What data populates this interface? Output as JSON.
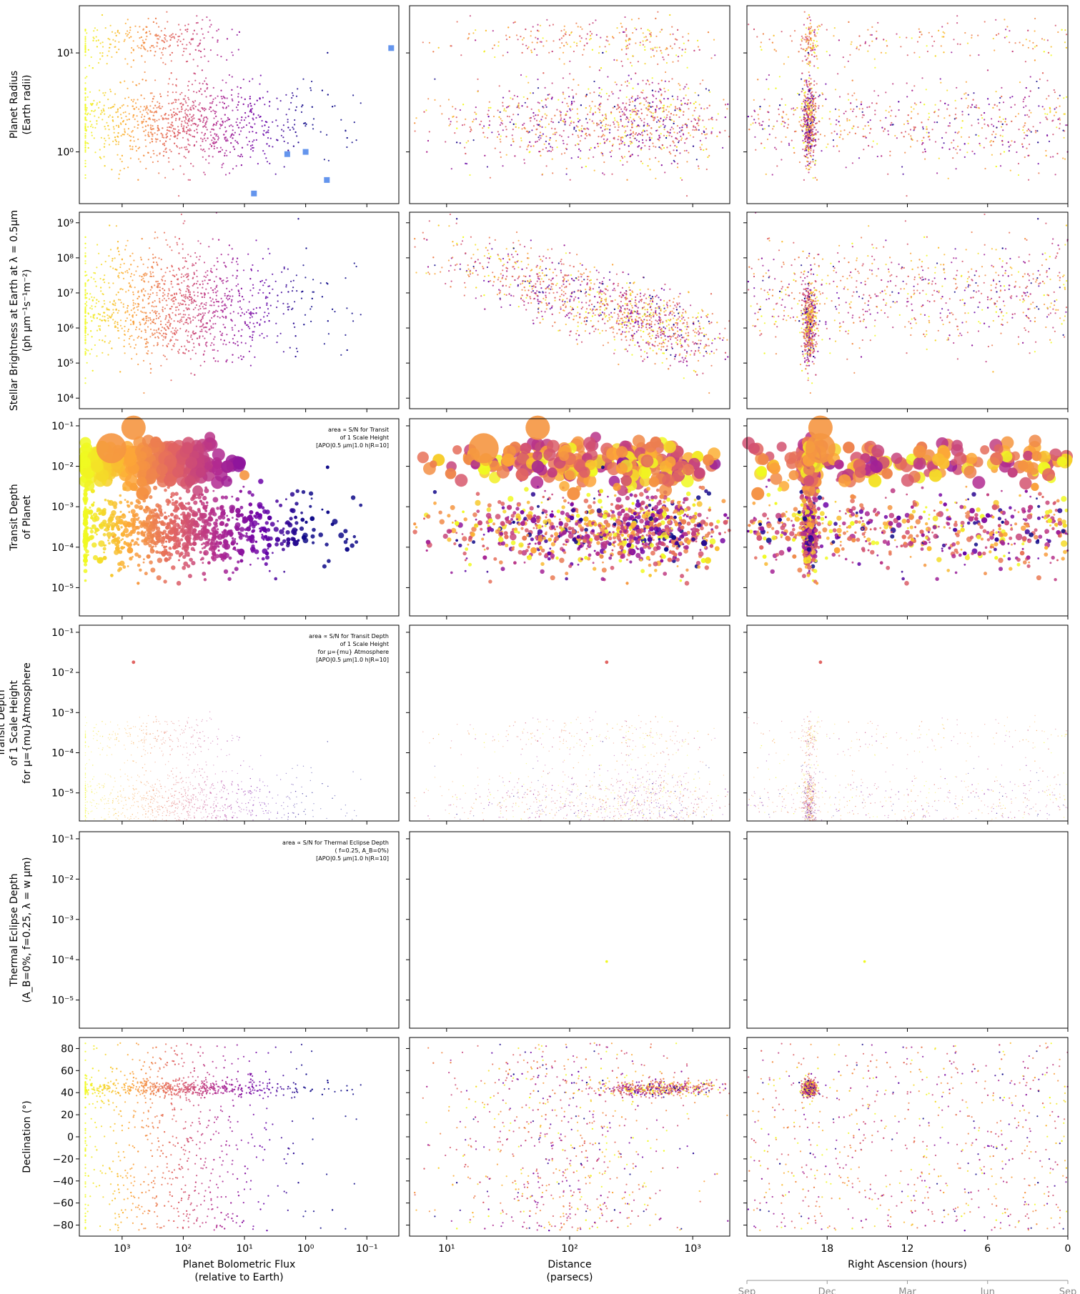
{
  "chart_data": {
    "type": "scatter",
    "colormap": [
      "#0d0887",
      "#6a00a8",
      "#b12a90",
      "#e16462",
      "#fca636",
      "#f0f921"
    ],
    "highlight_color": "#6495ed",
    "columns": [
      {
        "key": "flux",
        "xlabel": [
          "Planet Bolometric Flux",
          "(relative to Earth)"
        ],
        "xscale": "log",
        "xlim": [
          5000,
          0.03
        ],
        "xticks": [
          {
            "v": 1000,
            "label": "10³"
          },
          {
            "v": 100,
            "label": "10²"
          },
          {
            "v": 10,
            "label": "10¹"
          },
          {
            "v": 1,
            "label": "10⁰"
          },
          {
            "v": 0.1,
            "label": "10⁻¹"
          }
        ]
      },
      {
        "key": "distance",
        "xlabel": [
          "Distance",
          "(parsecs)"
        ],
        "xscale": "log",
        "xlim": [
          5,
          2000
        ],
        "xticks": [
          {
            "v": 10,
            "label": "10¹"
          },
          {
            "v": 100,
            "label": "10²"
          },
          {
            "v": 1000,
            "label": "10³"
          }
        ]
      },
      {
        "key": "ra",
        "xlabel": [
          "Right Ascension (hours)"
        ],
        "xscale": "linear",
        "xlim": [
          24,
          0
        ],
        "xticks": [
          {
            "v": 18,
            "label": "18"
          },
          {
            "v": 12,
            "label": "12"
          },
          {
            "v": 6,
            "label": "6"
          },
          {
            "v": 0,
            "label": "0"
          }
        ],
        "month_axis": {
          "labels": [
            "Sep",
            "Dec",
            "Mar",
            "Jun",
            "Sep"
          ],
          "positions": [
            24,
            18,
            12,
            6,
            0
          ]
        }
      }
    ],
    "rows": [
      {
        "key": "radius",
        "ylabel": [
          "Planet Radius",
          "(Earth radii)"
        ],
        "yscale": "log",
        "ylim": [
          0.3,
          30
        ],
        "yticks": [
          {
            "v": 1,
            "label": "10⁰"
          },
          {
            "v": 10,
            "label": "10¹"
          }
        ],
        "annotation": []
      },
      {
        "key": "brightness",
        "ylabel": [
          "Stellar Brightness at Earth at λ = 0.5μm",
          "(ph μm⁻¹s⁻¹m⁻²)"
        ],
        "yscale": "log",
        "ylim": [
          5000,
          2000000000
        ],
        "yticks": [
          {
            "v": 10000,
            "label": "10⁴"
          },
          {
            "v": 100000,
            "label": "10⁵"
          },
          {
            "v": 1000000,
            "label": "10⁶"
          },
          {
            "v": 10000000,
            "label": "10⁷"
          },
          {
            "v": 100000000,
            "label": "10⁸"
          },
          {
            "v": 1000000000,
            "label": "10⁹"
          }
        ],
        "annotation": []
      },
      {
        "key": "transit_depth",
        "ylabel": [
          "Transit Depth",
          "of Planet"
        ],
        "yscale": "log",
        "ylim": [
          2e-06,
          0.15
        ],
        "yticks": [
          {
            "v": 1e-05,
            "label": "10⁻⁵"
          },
          {
            "v": 0.0001,
            "label": "10⁻⁴"
          },
          {
            "v": 0.001,
            "label": "10⁻³"
          },
          {
            "v": 0.01,
            "label": "10⁻²"
          },
          {
            "v": 0.1,
            "label": "10⁻¹"
          }
        ],
        "annotation": [
          "area ∝ S/N for Transit",
          "of 1 Scale Height",
          "[APO|0.5 μm|1.0 h|R=10]"
        ]
      },
      {
        "key": "scale_height_depth",
        "ylabel": [
          "Transit Depth",
          "of 1 Scale Height",
          "for μ={mu}Atmosphere"
        ],
        "yscale": "log",
        "ylim": [
          2e-06,
          0.15
        ],
        "yticks": [
          {
            "v": 1e-05,
            "label": "10⁻⁵"
          },
          {
            "v": 0.0001,
            "label": "10⁻⁴"
          },
          {
            "v": 0.001,
            "label": "10⁻³"
          },
          {
            "v": 0.01,
            "label": "10⁻²"
          },
          {
            "v": 0.1,
            "label": "10⁻¹"
          }
        ],
        "annotation": [
          "area ∝ S/N for Transit Depth",
          "of 1 Scale Height",
          "for μ={mu} Atmosphere",
          "[APO|0.5 μm|1.0 h|R=10]"
        ]
      },
      {
        "key": "eclipse_depth",
        "ylabel": [
          "Thermal Eclipse Depth",
          "(A_B=0%, f=0.25, λ = w μm)"
        ],
        "yscale": "log",
        "ylim": [
          2e-06,
          0.15
        ],
        "yticks": [
          {
            "v": 1e-05,
            "label": "10⁻⁵"
          },
          {
            "v": 0.0001,
            "label": "10⁻⁴"
          },
          {
            "v": 0.001,
            "label": "10⁻³"
          },
          {
            "v": 0.01,
            "label": "10⁻²"
          },
          {
            "v": 0.1,
            "label": "10⁻¹"
          }
        ],
        "annotation": [
          "area ∝ S/N for Thermal Eclipse Depth",
          "( f=0.25, A_B=0%)",
          "[APO|0.5 μm|1.0 h|R=10]"
        ]
      },
      {
        "key": "declination",
        "ylabel": [
          "Declination (°)"
        ],
        "yscale": "linear",
        "ylim": [
          -90,
          90
        ],
        "yticks": [
          {
            "v": -80,
            "label": "−80"
          },
          {
            "v": -60,
            "label": "−60"
          },
          {
            "v": -40,
            "label": "−40"
          },
          {
            "v": -20,
            "label": "−20"
          },
          {
            "v": 0,
            "label": "0"
          },
          {
            "v": 20,
            "label": "20"
          },
          {
            "v": 40,
            "label": "40"
          },
          {
            "v": 60,
            "label": "60"
          },
          {
            "v": 80,
            "label": "80"
          }
        ],
        "annotation": []
      }
    ],
    "highlighted_planets": [
      {
        "flux": 0.04,
        "radius": 11.2
      },
      {
        "flux": 2.0,
        "radius": 0.95
      },
      {
        "flux": 1.0,
        "radius": 1.0
      },
      {
        "flux": 0.45,
        "radius": 0.52
      },
      {
        "flux": 7.0,
        "radius": 0.38
      }
    ],
    "labeled_points": [
      {
        "flux": 650,
        "distance": 55,
        "ra": 18.5,
        "depth": 0.09,
        "size": 34
      },
      {
        "flux": 1500,
        "distance": 20,
        "ra": 18.5,
        "depth": 0.028,
        "size": 42
      },
      {
        "flux": 1400,
        "distance": 200,
        "ra": 15.2,
        "depth": 0.00018,
        "size": 3
      },
      {
        "flux": 10,
        "distance": 100,
        "ra": 20.5,
        "depth": 0.006,
        "size": 14
      }
    ]
  }
}
